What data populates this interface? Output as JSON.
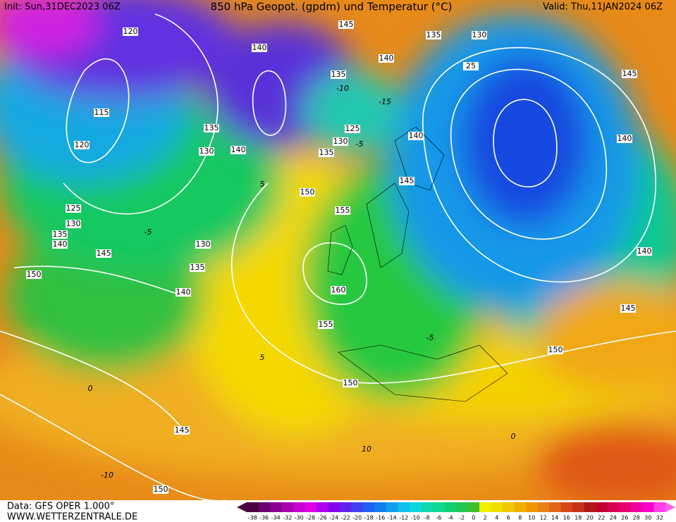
{
  "header": {
    "init": "Init: Sun,31DEC2023 06Z",
    "title": "850 hPa Geopot. (gpdm) und Temperatur (°C)",
    "valid": "Valid: Thu,11JAN2024 06Z"
  },
  "footer": {
    "data": "Data: GFS OPER 1.000°",
    "site": "WWW.WETTERZENTRALE.DE"
  },
  "colorbar": {
    "labels": [
      "-38",
      "-36",
      "-34",
      "-32",
      "-30",
      "-28",
      "-26",
      "-24",
      "-22",
      "-20",
      "-18",
      "-16",
      "-14",
      "-12",
      "-10",
      "-8",
      "-6",
      "-4",
      "-2",
      "0",
      "2",
      "4",
      "6",
      "8",
      "10",
      "12",
      "14",
      "16",
      "18",
      "20",
      "22",
      "24",
      "26",
      "28",
      "30",
      "32"
    ]
  },
  "contour_labels": [
    "120",
    "145",
    "135",
    "130",
    "140",
    "140",
    "25",
    "145",
    "115",
    "135",
    "125",
    "130",
    "135",
    "140",
    "140",
    "120",
    "130",
    "140",
    "135",
    "150",
    "145",
    "155",
    "125",
    "130",
    "135",
    "140",
    "145",
    "130",
    "135",
    "140",
    "140",
    "150",
    "160",
    "145",
    "155",
    "150",
    "150",
    "145",
    "150"
  ],
  "temperature_labels": [
    "-10",
    "-15",
    "-5",
    "-5",
    "0",
    "5",
    "5",
    "-10",
    "-5",
    "10",
    "0"
  ]
}
